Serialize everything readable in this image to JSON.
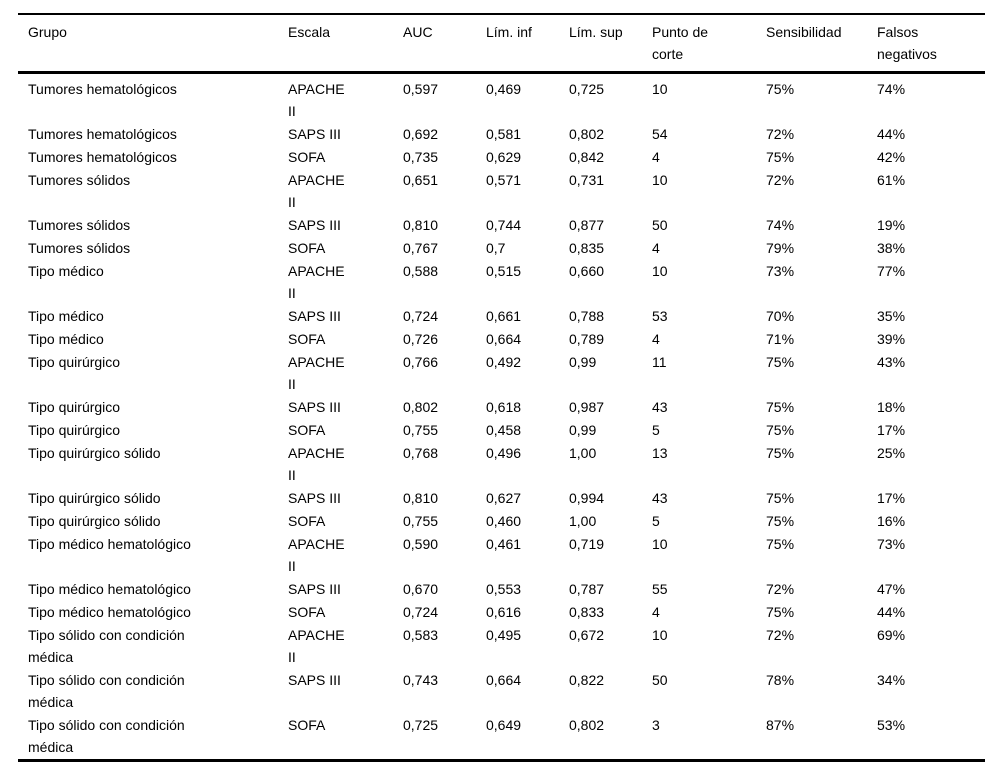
{
  "colors": {
    "background": "#ffffff",
    "text": "#000000",
    "rule": "#000000"
  },
  "table": {
    "columns": [
      "Grupo",
      "Escala",
      "AUC",
      "Lím. inf",
      "Lím. sup",
      "Punto de corte",
      "Sensibilidad",
      "Falsos negativos"
    ],
    "column_keys": [
      "grupo",
      "escala",
      "auc",
      "lim-inf",
      "lim-sup",
      "punto-de-corte",
      "sensibilidad",
      "falsos-negativos"
    ],
    "rows": [
      [
        "Tumores hematológicos",
        "APACHE II",
        "0,597",
        "0,469",
        "0,725",
        "10",
        "75%",
        "74%"
      ],
      [
        "Tumores hematológicos",
        "SAPS III",
        "0,692",
        "0,581",
        "0,802",
        "54",
        "72%",
        "44%"
      ],
      [
        "Tumores hematológicos",
        "SOFA",
        "0,735",
        "0,629",
        "0,842",
        "4",
        "75%",
        "42%"
      ],
      [
        "Tumores sólidos",
        "APACHE II",
        "0,651",
        "0,571",
        "0,731",
        "10",
        "72%",
        "61%"
      ],
      [
        "Tumores sólidos",
        "SAPS III",
        "0,810",
        "0,744",
        "0,877",
        "50",
        "74%",
        "19%"
      ],
      [
        "Tumores sólidos",
        "SOFA",
        "0,767",
        "0,7",
        "0,835",
        "4",
        "79%",
        "38%"
      ],
      [
        "Tipo médico",
        "APACHE II",
        "0,588",
        "0,515",
        "0,660",
        "10",
        "73%",
        "77%"
      ],
      [
        "Tipo médico",
        "SAPS III",
        "0,724",
        "0,661",
        "0,788",
        "53",
        "70%",
        "35%"
      ],
      [
        "Tipo médico",
        "SOFA",
        "0,726",
        "0,664",
        "0,789",
        "4",
        "71%",
        "39%"
      ],
      [
        "Tipo quirúrgico",
        "APACHE II",
        "0,766",
        "0,492",
        "0,99",
        "11",
        "75%",
        "43%"
      ],
      [
        "Tipo quirúrgico",
        "SAPS III",
        "0,802",
        "0,618",
        "0,987",
        "43",
        "75%",
        "18%"
      ],
      [
        "Tipo quirúrgico",
        "SOFA",
        "0,755",
        "0,458",
        "0,99",
        "5",
        "75%",
        "17%"
      ],
      [
        "Tipo quirúrgico sólido",
        "APACHE II",
        "0,768",
        "0,496",
        "1,00",
        "13",
        "75%",
        "25%"
      ],
      [
        "Tipo quirúrgico sólido",
        "SAPS III",
        "0,810",
        "0,627",
        "0,994",
        "43",
        "75%",
        "17%"
      ],
      [
        "Tipo quirúrgico sólido",
        "SOFA",
        "0,755",
        "0,460",
        "1,00",
        "5",
        "75%",
        "16%"
      ],
      [
        "Tipo médico hematológico",
        "APACHE II",
        "0,590",
        "0,461",
        "0,719",
        "10",
        "75%",
        "73%"
      ],
      [
        "Tipo médico hematológico",
        "SAPS III",
        "0,670",
        "0,553",
        "0,787",
        "55",
        "72%",
        "47%"
      ],
      [
        "Tipo médico hematológico",
        "SOFA",
        "0,724",
        "0,616",
        "0,833",
        "4",
        "75%",
        "44%"
      ],
      [
        "Tipo sólido con condición médica",
        "APACHE II",
        "0,583",
        "0,495",
        "0,672",
        "10",
        "72%",
        "69%"
      ],
      [
        "Tipo sólido con condición médica",
        "SAPS III",
        "0,743",
        "0,664",
        "0,822",
        "50",
        "78%",
        "34%"
      ],
      [
        "Tipo sólido con condición médica",
        "SOFA",
        "0,725",
        "0,649",
        "0,802",
        "3",
        "87%",
        "53%"
      ]
    ]
  }
}
